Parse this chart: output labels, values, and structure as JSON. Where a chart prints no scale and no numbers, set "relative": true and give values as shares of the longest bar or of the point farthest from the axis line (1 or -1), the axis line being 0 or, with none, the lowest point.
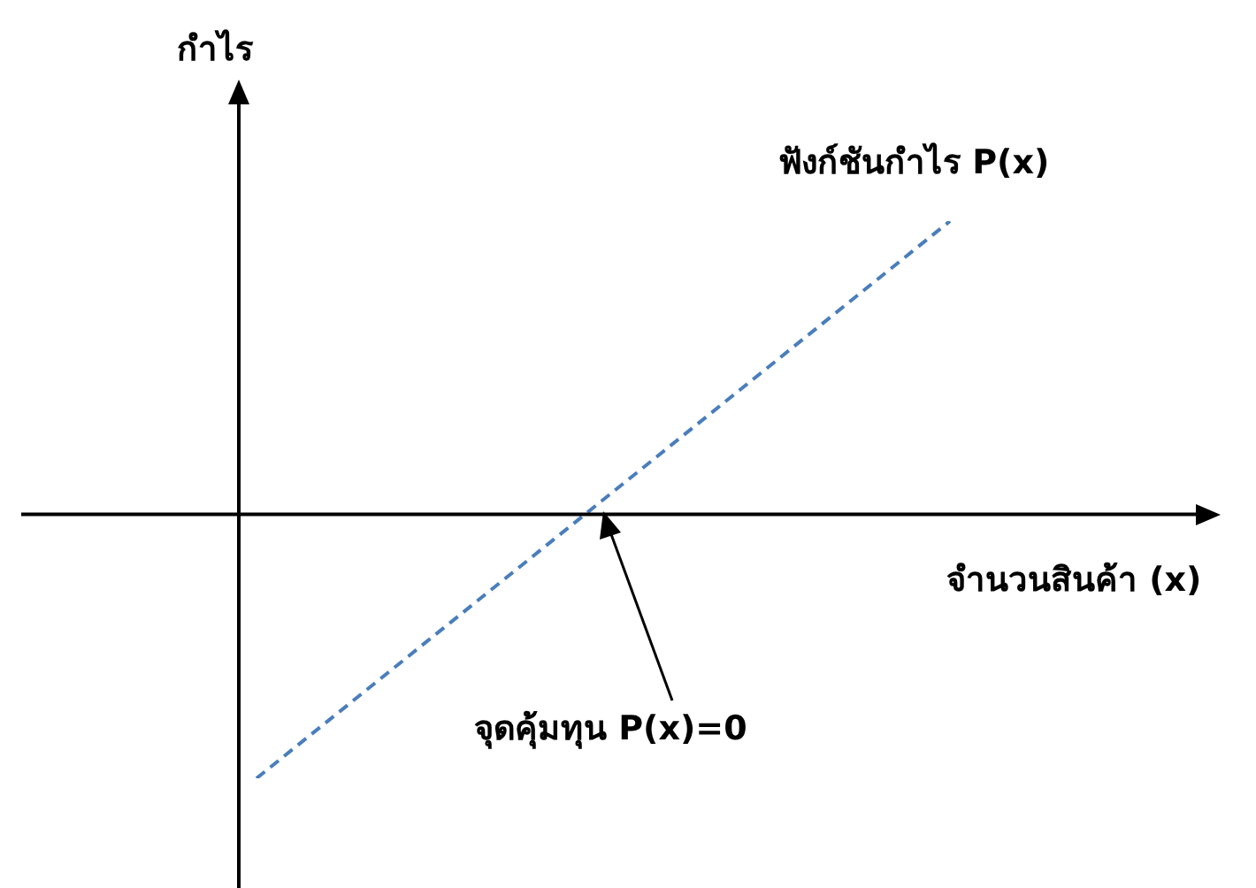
{
  "chart_data": {
    "type": "line",
    "relative": true,
    "xlabel": "จำนวนสินค้า (x)",
    "ylabel": "กำไร",
    "categories": [
      null,
      null
    ],
    "series": [
      {
        "name": "ฟังก์ชันกำไร P(x)",
        "color": "#4a7ebb",
        "values": [
          -0.9,
          1
        ]
      }
    ],
    "line_style": "dashed",
    "marker": "none",
    "legend": false,
    "annotations": [
      "จุดคุ้มทุน P(x)=0"
    ]
  }
}
